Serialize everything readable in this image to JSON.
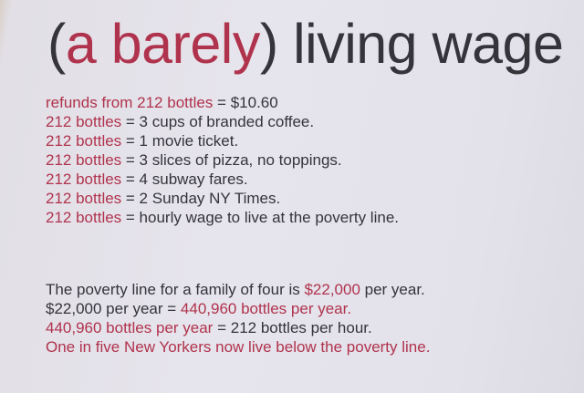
{
  "colors": {
    "red": "#b0334d",
    "dark": "#35343a",
    "paper": "#e4e2ea"
  },
  "title": [
    {
      "text": "(",
      "color": "dark"
    },
    {
      "text": "a barely",
      "color": "red"
    },
    {
      "text": ") living wage",
      "color": "dark"
    }
  ],
  "paragraph1": [
    [
      {
        "text": "refunds from 212 bottles",
        "color": "red"
      },
      {
        "text": " = $10.60",
        "color": "dark"
      }
    ],
    [
      {
        "text": "212 bottles",
        "color": "red"
      },
      {
        "text": " = 3 cups of branded coffee.",
        "color": "dark"
      }
    ],
    [
      {
        "text": "212 bottles",
        "color": "red"
      },
      {
        "text": " = 1 movie ticket.",
        "color": "dark"
      }
    ],
    [
      {
        "text": "212 bottles",
        "color": "red"
      },
      {
        "text": " = 3 slices of pizza, no toppings.",
        "color": "dark"
      }
    ],
    [
      {
        "text": "212 bottles",
        "color": "red"
      },
      {
        "text": " = 4 subway fares.",
        "color": "dark"
      }
    ],
    [
      {
        "text": "212 bottles",
        "color": "red"
      },
      {
        "text": " = 2 Sunday NY Times.",
        "color": "dark"
      }
    ],
    [
      {
        "text": "212 bottles",
        "color": "red"
      },
      {
        "text": " = hourly wage to live at the poverty line.",
        "color": "dark"
      }
    ]
  ],
  "paragraph2": [
    [
      {
        "text": "The poverty line for a family of four is ",
        "color": "dark"
      },
      {
        "text": "$22,000",
        "color": "red"
      },
      {
        "text": " per year.",
        "color": "dark"
      }
    ],
    [
      {
        "text": "$22,000 per year = ",
        "color": "dark"
      },
      {
        "text": "440,960 bottles per year.",
        "color": "red"
      }
    ],
    [
      {
        "text": "440,960 bottles per year",
        "color": "red"
      },
      {
        "text": " = 212 bottles per hour.",
        "color": "dark"
      }
    ],
    [
      {
        "text": "One in five New Yorkers now live below the poverty line.",
        "color": "red"
      }
    ]
  ]
}
